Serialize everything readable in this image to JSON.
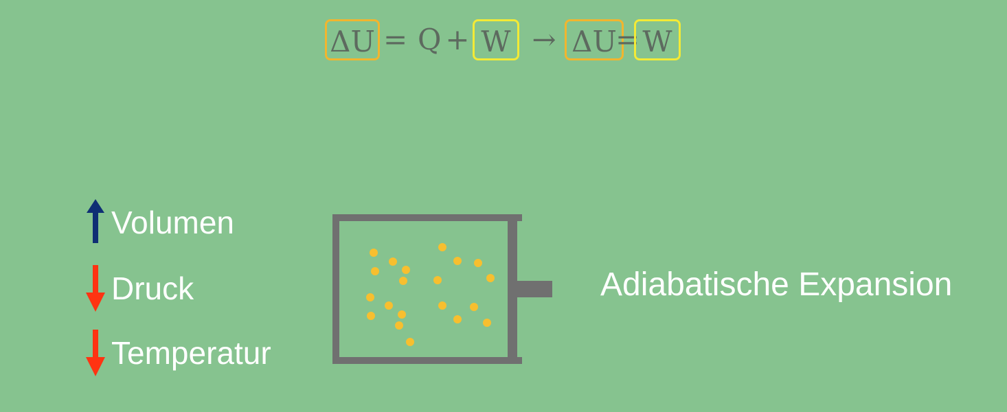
{
  "equation": {
    "delta_u": "ΔU",
    "equals": "=",
    "q": "Q",
    "plus": "+",
    "w": "W",
    "arrow": "→",
    "delta_u_result": "ΔU",
    "equals_result": "=",
    "w_result": "W"
  },
  "indicators": [
    {
      "label": "Volumen",
      "direction": "up",
      "color": "#0f2f74"
    },
    {
      "label": "Druck",
      "direction": "down",
      "color": "#ff3312"
    },
    {
      "label": "Temperatur",
      "direction": "down",
      "color": "#ff3312"
    }
  ],
  "apparatus": {
    "wall_color": "#707070",
    "particle_color": "#f7bf2f"
  },
  "caption": "Adiabatische Expansion",
  "colors": {
    "background": "#86c38f",
    "highlight_orange": "#f2b52e",
    "highlight_yellow": "#f3ea36",
    "text_white": "#ffffff"
  }
}
